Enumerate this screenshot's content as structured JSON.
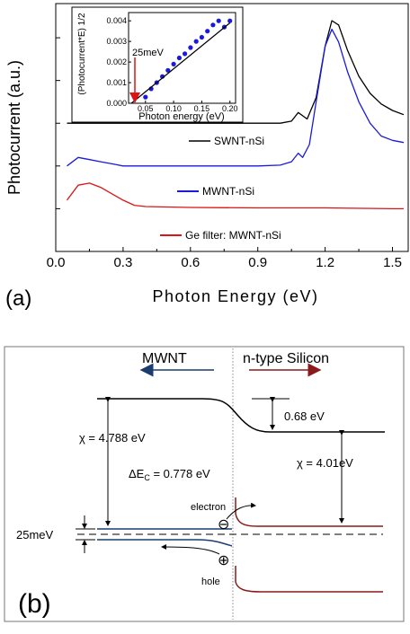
{
  "panel_a": {
    "panel_label": "(a)",
    "ylabel": "Photocurrent (a.u.)",
    "xlabel": "Photon Energy (eV)",
    "x_ticks": [
      "0.0",
      "0.3",
      "0.6",
      "0.9",
      "1.2",
      "1.5"
    ],
    "legend": [
      {
        "label": "SWNT-nSi",
        "color": "#000000"
      },
      {
        "label": "MWNT-nSi",
        "color": "#1a1adc"
      },
      {
        "label": "Ge filter: MWNT-nSi",
        "color": "#dc1414"
      }
    ],
    "inset": {
      "ylabel": "(Photocurrent*E) 1/2",
      "xlabel": "Photon energy (eV)",
      "x_ticks": [
        "0.05",
        "0.10",
        "0.15",
        "0.20"
      ],
      "y_ticks": [
        "0.000",
        "0.001",
        "0.002",
        "0.003",
        "0.004"
      ],
      "annotation": "25meV"
    }
  },
  "chart_data": [
    {
      "type": "line",
      "title": "",
      "xlabel": "Photon Energy (eV)",
      "ylabel": "Photocurrent (a.u.)",
      "xlim": [
        0.0,
        1.57
      ],
      "grid": false,
      "legend_placement": "inline labels next to curves",
      "series": [
        {
          "name": "SWNT-nSi",
          "color": "#000000",
          "x": [
            0.05,
            0.3,
            0.6,
            0.9,
            1.0,
            1.05,
            1.08,
            1.12,
            1.16,
            1.2,
            1.23,
            1.26,
            1.3,
            1.35,
            1.4,
            1.45,
            1.5,
            1.55
          ],
          "y": [
            3.0,
            3.0,
            3.0,
            3.0,
            3.0,
            3.05,
            3.25,
            3.1,
            3.6,
            4.8,
            5.4,
            5.3,
            4.7,
            4.1,
            3.7,
            3.45,
            3.3,
            3.2
          ]
        },
        {
          "name": "MWNT-nSi",
          "color": "#1a1adc",
          "x": [
            0.05,
            0.1,
            0.15,
            0.2,
            0.25,
            0.3,
            0.4,
            0.6,
            0.9,
            1.0,
            1.05,
            1.08,
            1.1,
            1.13,
            1.16,
            1.2,
            1.23,
            1.26,
            1.3,
            1.35,
            1.4,
            1.45,
            1.5,
            1.55
          ],
          "y": [
            2.0,
            2.2,
            2.15,
            2.1,
            2.05,
            2.0,
            2.0,
            2.0,
            2.0,
            2.02,
            2.1,
            2.3,
            2.2,
            2.5,
            3.5,
            4.8,
            5.2,
            4.9,
            4.2,
            3.5,
            3.0,
            2.7,
            2.6,
            2.55
          ]
        },
        {
          "name": "Ge filter: MWNT-nSi",
          "color": "#dc1414",
          "x": [
            0.05,
            0.1,
            0.15,
            0.2,
            0.25,
            0.3,
            0.35,
            0.4,
            0.6,
            0.9,
            1.2,
            1.5,
            1.55
          ],
          "y": [
            1.2,
            1.55,
            1.6,
            1.5,
            1.35,
            1.2,
            1.08,
            1.05,
            1.03,
            1.02,
            1.02,
            1.0,
            1.0
          ]
        }
      ]
    },
    {
      "type": "scatter",
      "title": "",
      "xlabel": "Photon energy (eV)",
      "ylabel": "(Photocurrent*E) 1/2",
      "xlim": [
        0.02,
        0.21
      ],
      "ylim": [
        0.0,
        0.0044
      ],
      "series": [
        {
          "name": "",
          "color": "#1a1adc",
          "x": [
            0.05,
            0.06,
            0.07,
            0.08,
            0.09,
            0.1,
            0.11,
            0.12,
            0.13,
            0.14,
            0.15,
            0.16,
            0.17,
            0.18,
            0.19,
            0.2
          ],
          "y": [
            0.0003,
            0.0007,
            0.001,
            0.0013,
            0.0016,
            0.0019,
            0.0022,
            0.0024,
            0.0027,
            0.003,
            0.0032,
            0.0035,
            0.0038,
            0.004,
            0.0037,
            0.004
          ]
        },
        {
          "name": "",
          "color": "#000000",
          "x": [
            0.025,
            0.2
          ],
          "y": [
            0.0,
            0.0039
          ]
        }
      ]
    }
  ],
  "panel_b": {
    "panel_label": "(b)",
    "mwnt_label": "MWNT",
    "silicon_label": "n-type Silicon",
    "chi_left": "χ = 4.788 eV",
    "chi_right": "χ = 4.01eV",
    "delta_ec_main": "ΔE",
    "delta_ec_sub": "C",
    "delta_ec_value": " = 0.778 eV",
    "band_offset": "0.68 eV",
    "electron": "electron",
    "hole": "hole",
    "level_gap": "25meV",
    "electron_symbol": "⊖",
    "hole_symbol": "⊕",
    "arrow_left_color": "#1a3d6e",
    "arrow_right_color": "#8b1a1a"
  }
}
